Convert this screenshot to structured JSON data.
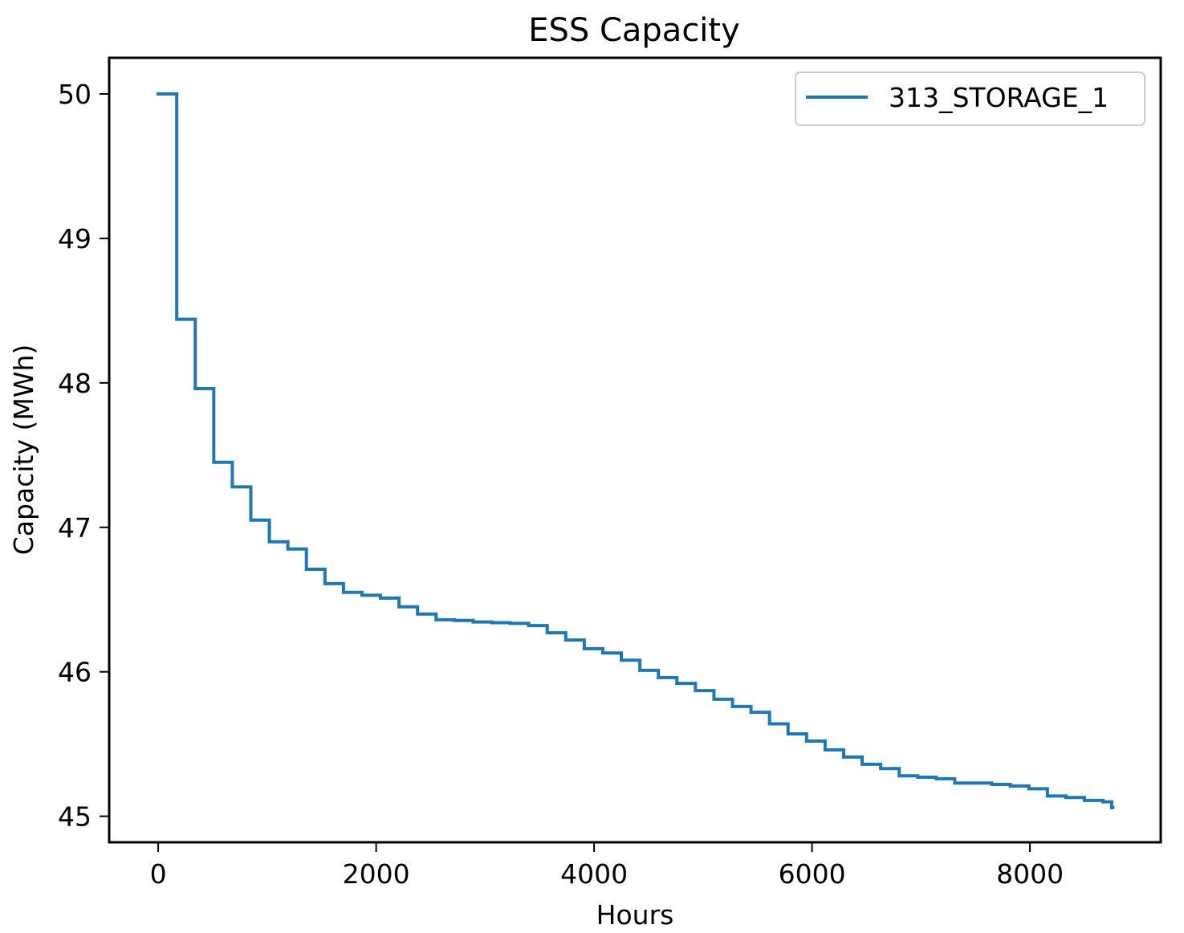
{
  "chart_data": {
    "type": "line",
    "title": "ESS Capacity",
    "xlabel": "Hours",
    "ylabel": "Capacity (MWh)",
    "xlim": [
      -450,
      9200
    ],
    "ylim": [
      44.82,
      50.25
    ],
    "xticks": [
      0,
      2000,
      4000,
      6000,
      8000
    ],
    "xtick_labels": [
      "0",
      "2000",
      "4000",
      "6000",
      "8000"
    ],
    "yticks": [
      45,
      46,
      47,
      48,
      49,
      50
    ],
    "ytick_labels": [
      "45",
      "46",
      "47",
      "48",
      "49",
      "50"
    ],
    "grid": false,
    "legend": {
      "placement": "top-right"
    },
    "series": [
      {
        "name": "313_STORAGE_1",
        "color": "#1f77b4",
        "step": true,
        "x": [
          0,
          170,
          170,
          340,
          340,
          510,
          510,
          680,
          680,
          850,
          850,
          1020,
          1020,
          1190,
          1190,
          1360,
          1360,
          1530,
          1530,
          1700,
          1700,
          1870,
          1870,
          2040,
          2040,
          2210,
          2210,
          2380,
          2380,
          2550,
          2550,
          2720,
          2720,
          2890,
          2890,
          3060,
          3060,
          3230,
          3230,
          3400,
          3400,
          3570,
          3570,
          3740,
          3740,
          3910,
          3910,
          4080,
          4080,
          4250,
          4250,
          4420,
          4420,
          4590,
          4590,
          4760,
          4760,
          4930,
          4930,
          5100,
          5100,
          5270,
          5270,
          5440,
          5440,
          5610,
          5610,
          5780,
          5780,
          5950,
          5950,
          6120,
          6120,
          6290,
          6290,
          6460,
          6460,
          6630,
          6630,
          6800,
          6800,
          6970,
          6970,
          7140,
          7140,
          7310,
          7310,
          7480,
          7480,
          7650,
          7650,
          7820,
          7820,
          7990,
          7990,
          8160,
          8160,
          8330,
          8330,
          8500,
          8500,
          8670,
          8670,
          8750,
          8750,
          8760
        ],
        "values": [
          50.0,
          50.0,
          48.44,
          48.44,
          47.96,
          47.96,
          47.45,
          47.45,
          47.28,
          47.28,
          47.05,
          47.05,
          46.9,
          46.9,
          46.85,
          46.85,
          46.71,
          46.71,
          46.61,
          46.61,
          46.55,
          46.55,
          46.53,
          46.53,
          46.51,
          46.51,
          46.45,
          46.45,
          46.4,
          46.4,
          46.36,
          46.36,
          46.355,
          46.355,
          46.345,
          46.345,
          46.34,
          46.34,
          46.335,
          46.335,
          46.32,
          46.32,
          46.27,
          46.27,
          46.22,
          46.22,
          46.16,
          46.16,
          46.13,
          46.13,
          46.08,
          46.08,
          46.01,
          46.01,
          45.96,
          45.96,
          45.92,
          45.92,
          45.87,
          45.87,
          45.81,
          45.81,
          45.76,
          45.76,
          45.72,
          45.72,
          45.64,
          45.64,
          45.57,
          45.57,
          45.52,
          45.52,
          45.46,
          45.46,
          45.41,
          45.41,
          45.36,
          45.36,
          45.33,
          45.33,
          45.28,
          45.28,
          45.27,
          45.27,
          45.26,
          45.26,
          45.23,
          45.23,
          45.23,
          45.23,
          45.22,
          45.22,
          45.21,
          45.21,
          45.19,
          45.19,
          45.14,
          45.14,
          45.13,
          45.13,
          45.11,
          45.11,
          45.1,
          45.1,
          45.06,
          45.06
        ]
      }
    ]
  }
}
